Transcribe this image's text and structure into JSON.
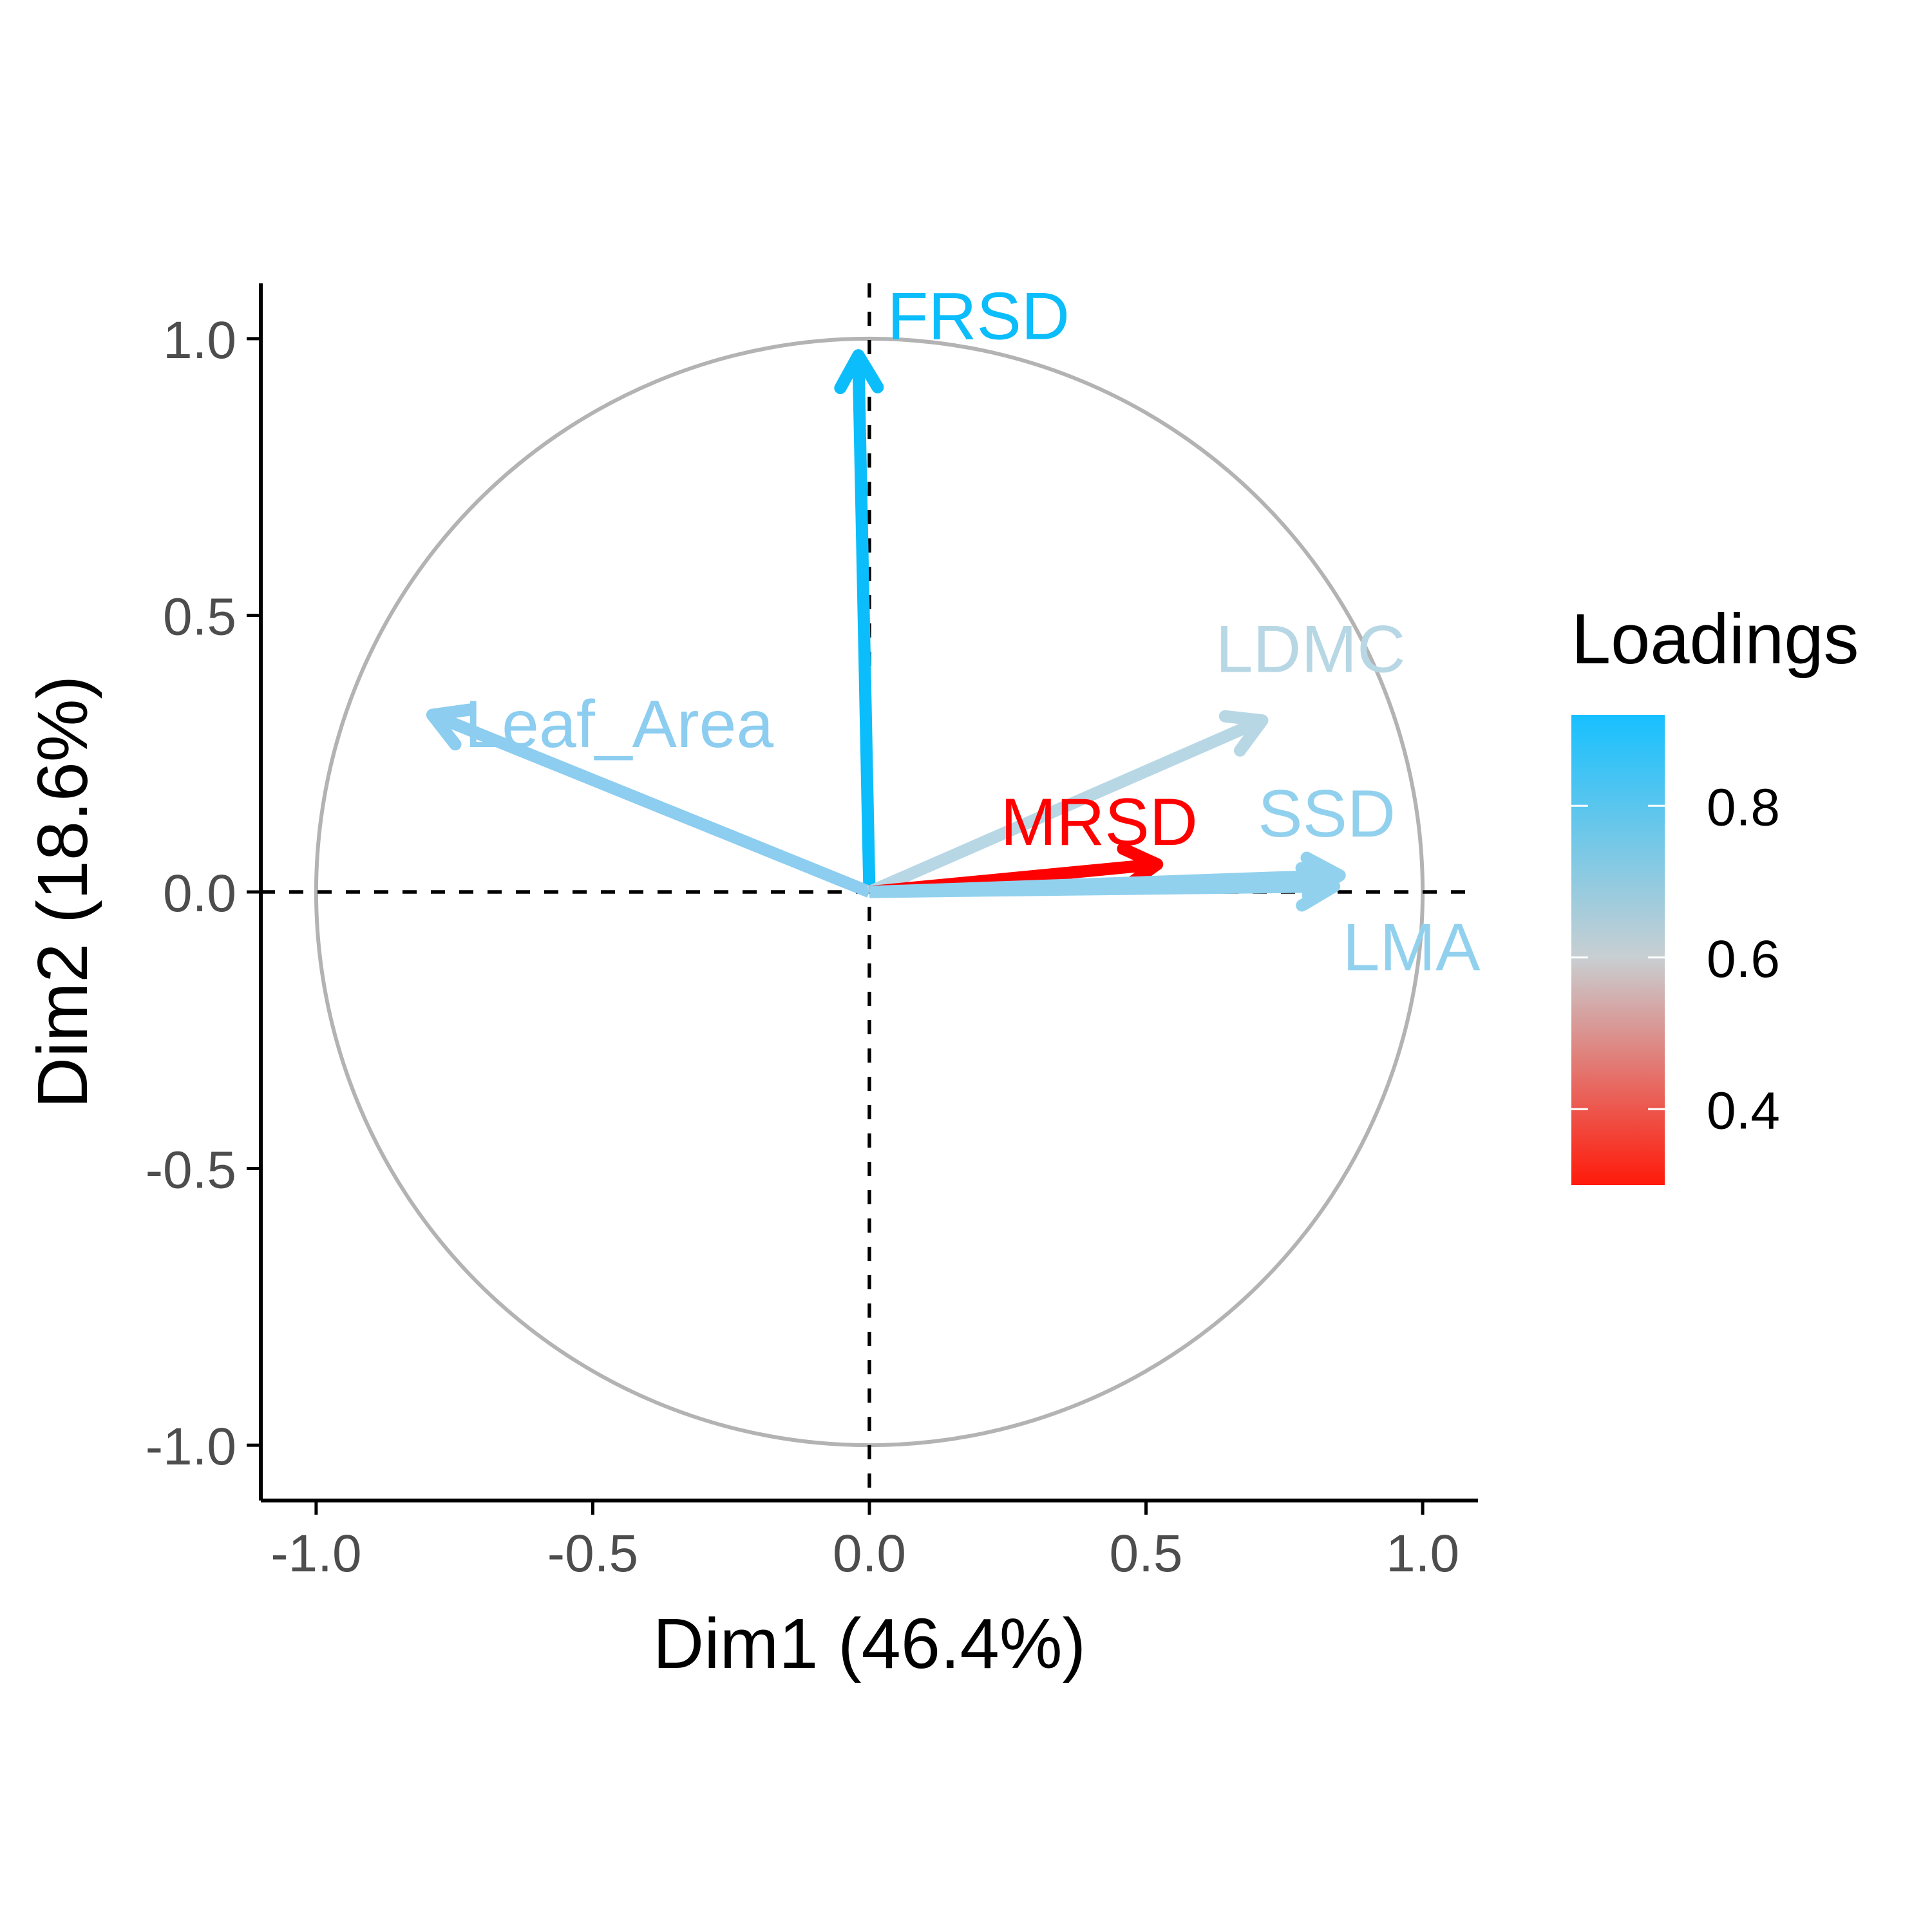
{
  "chart_data": {
    "type": "pca-variable-correlation-circle",
    "xlabel": "Dim1 (46.4%)",
    "ylabel": "Dim2 (18.6%)",
    "xlim": [
      -1.1,
      1.1
    ],
    "ylim": [
      -1.1,
      1.1
    ],
    "x_ticks": [
      -1.0,
      -0.5,
      0.0,
      0.5,
      1.0
    ],
    "y_ticks": [
      -1.0,
      -0.5,
      0.0,
      0.5,
      1.0
    ],
    "x_tick_labels": [
      "-1.0",
      "-0.5",
      "0.0",
      "0.5",
      "1.0"
    ],
    "y_tick_labels": [
      "-1.0",
      "-0.5",
      "0.0",
      "0.5",
      "1.0"
    ],
    "reference_lines": [
      0,
      0
    ],
    "unit_circle": true,
    "grid": false,
    "legend": {
      "title": "Loadings",
      "type": "gradient",
      "placement": "right",
      "range": [
        0.3,
        0.92
      ],
      "ticks": [
        0.4,
        0.6,
        0.8
      ],
      "tick_labels": [
        "0.4",
        "0.6",
        "0.8"
      ],
      "stops": [
        {
          "value": 0.3,
          "color": "#ff1a0a"
        },
        {
          "value": 0.6,
          "color": "#c8cfd2"
        },
        {
          "value": 0.92,
          "color": "#17c0ff"
        }
      ]
    },
    "variables": [
      {
        "name": "FRSD",
        "x": -0.02,
        "y": 0.97,
        "loading": 0.92,
        "color": "#0bbdfa"
      },
      {
        "name": "Leaf_Area",
        "x": -0.79,
        "y": 0.32,
        "loading": 0.78,
        "color": "#8ccdf0"
      },
      {
        "name": "LDMC",
        "x": 0.71,
        "y": 0.31,
        "loading": 0.63,
        "color": "#b8d7e5"
      },
      {
        "name": "MRSD",
        "x": 0.52,
        "y": 0.05,
        "loading": 0.3,
        "color": "#ff0000"
      },
      {
        "name": "SSD",
        "x": 0.85,
        "y": 0.03,
        "loading": 0.76,
        "color": "#92d1ee"
      },
      {
        "name": "LMA",
        "x": 0.84,
        "y": 0.01,
        "loading": 0.76,
        "color": "#92d1ee"
      }
    ]
  }
}
